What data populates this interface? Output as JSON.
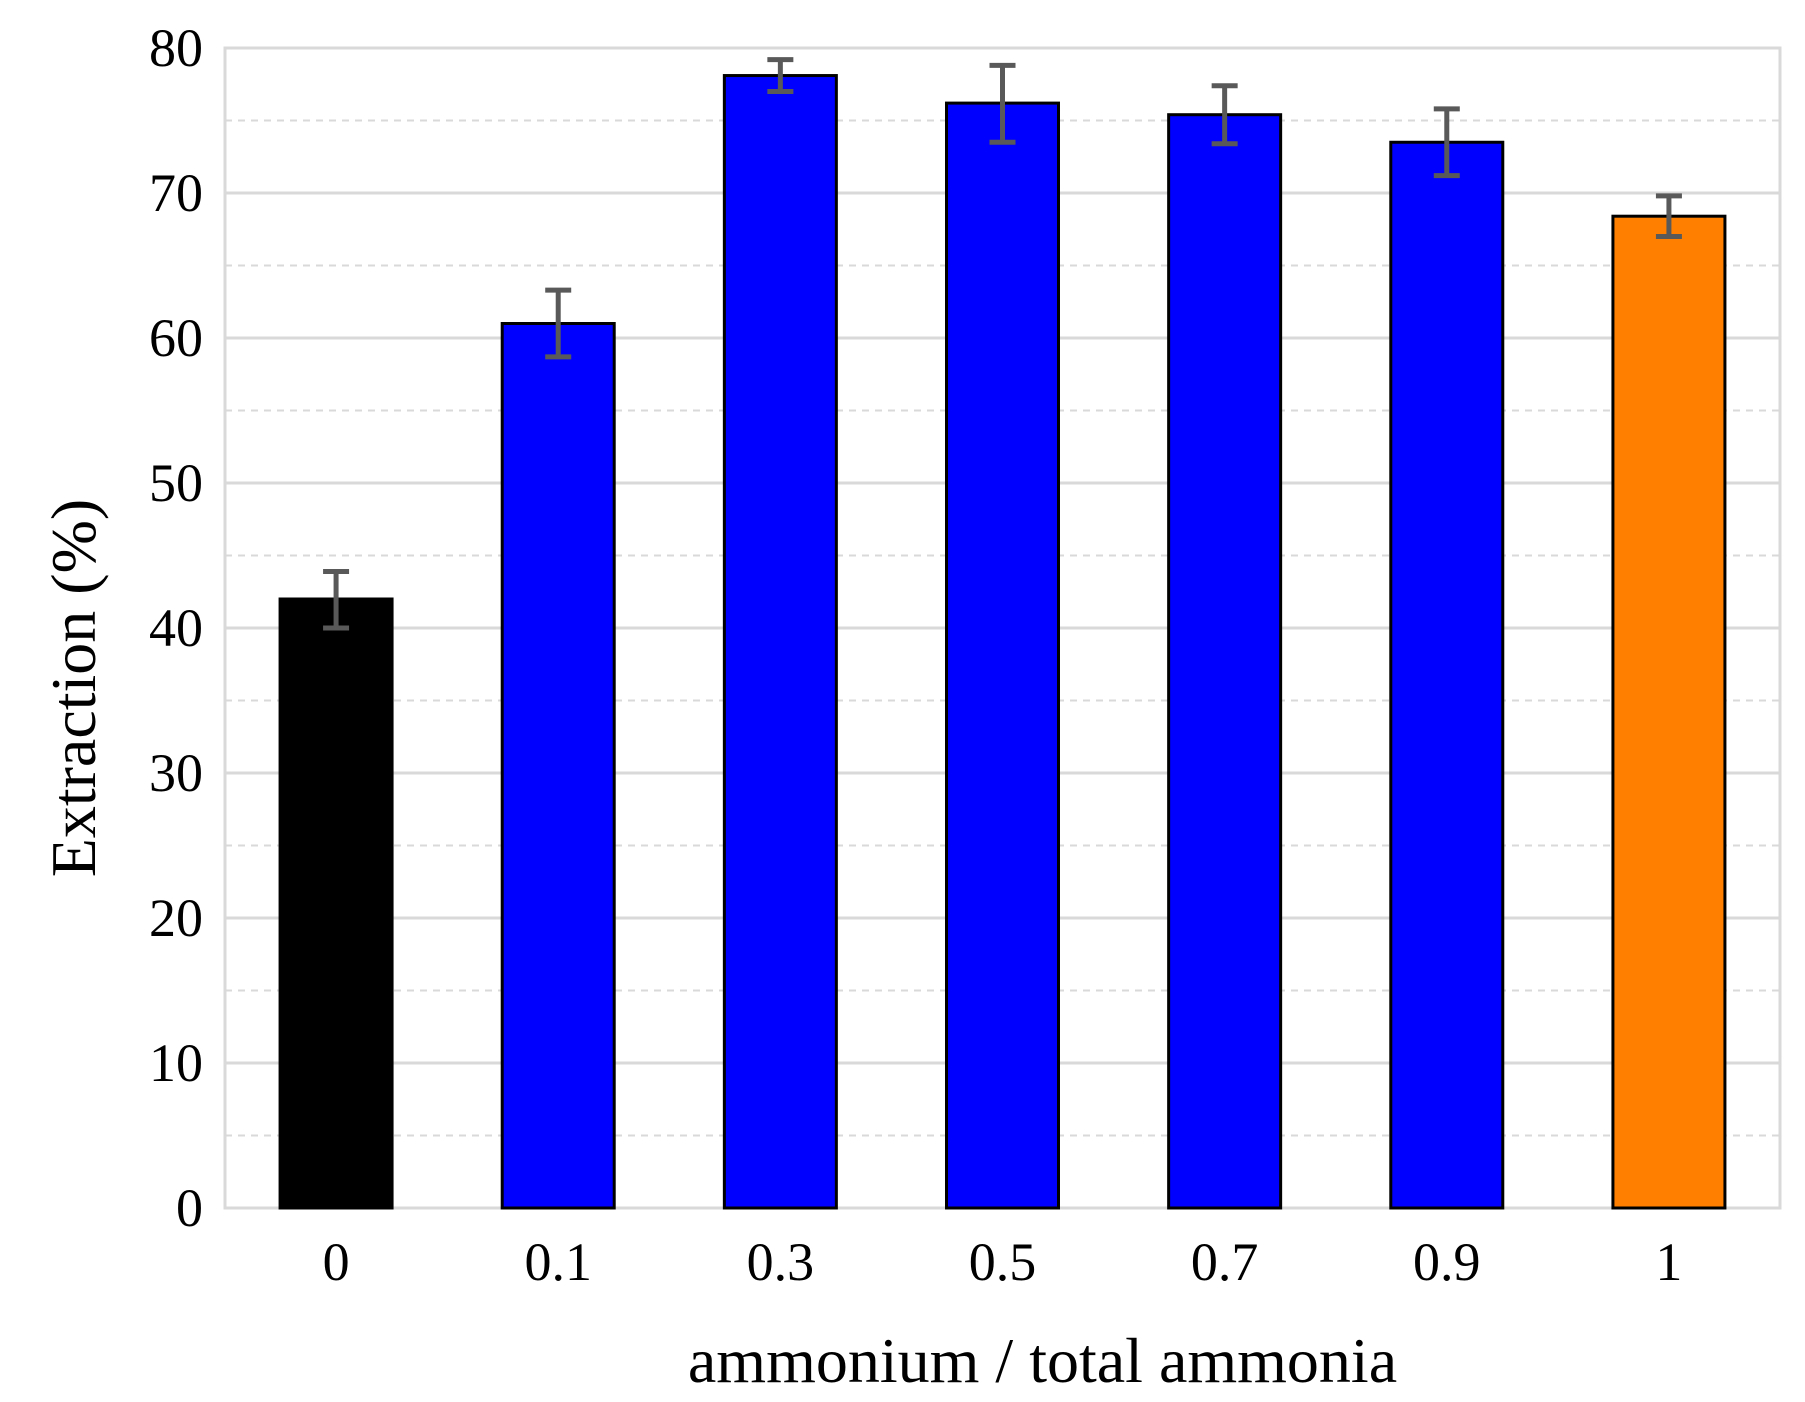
{
  "chart_data": {
    "type": "bar",
    "title": "",
    "xlabel": "ammonium / total ammonia",
    "ylabel": "Extraction (%)",
    "ylim": [
      0,
      80
    ],
    "yticks": [
      0,
      10,
      20,
      30,
      40,
      50,
      60,
      70,
      80
    ],
    "grid": {
      "major": true,
      "minor_dashed": true,
      "major_step": 10,
      "minor_step": 5
    },
    "categories": [
      "0",
      "0.1",
      "0.3",
      "0.5",
      "0.7",
      "0.9",
      "1"
    ],
    "values": [
      42.0,
      61.0,
      78.1,
      76.2,
      75.4,
      73.5,
      68.4
    ],
    "error_low": [
      40.0,
      58.7,
      77.0,
      73.5,
      73.4,
      71.2,
      67.0
    ],
    "error_high": [
      43.9,
      63.3,
      79.2,
      78.8,
      77.4,
      75.8,
      69.8
    ],
    "bar_colors": [
      "#000000",
      "#0000ff",
      "#0000ff",
      "#0000ff",
      "#0000ff",
      "#0000ff",
      "#ff8000"
    ],
    "bar_edge_color": "#000000",
    "errorbar_color": "#595959",
    "grid_color": "#d9d9d9",
    "frame_color": "#d9d9d9",
    "legend": "none"
  }
}
